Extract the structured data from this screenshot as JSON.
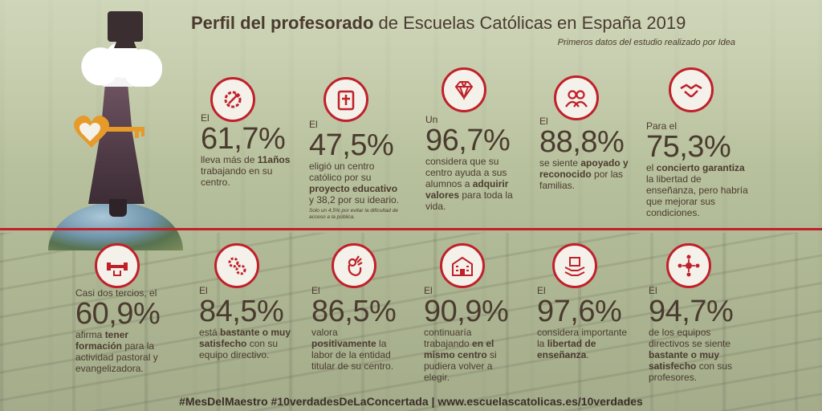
{
  "header": {
    "title_bold": "Perfil del profesorado",
    "title_rest": " de Escuelas Católicas en España 2019",
    "subtitle": "Primeros datos del estudio realizado por Idea"
  },
  "colors": {
    "accent": "#c0202a",
    "text": "#4a3b2e",
    "icon_bg": "#f4f1ea"
  },
  "stats_top": [
    {
      "icon": "gears-wrench-icon",
      "intro": "El",
      "value": "61,7%",
      "d1": "lleva más de ",
      "d1b": "11",
      "d2": "",
      "d2b": "años",
      "d3": " trabajando en su centro.",
      "note": ""
    },
    {
      "icon": "cross-book-icon",
      "intro": "El",
      "value": "47,5%",
      "d1": "eligió un centro católico por su ",
      "d1b": "proyecto educativo",
      "d2": " y 38,2 por su ideario.",
      "d2b": "",
      "d3": "",
      "note": "Solo un 4,5% por evitar la dificultad de acceso a la pública."
    },
    {
      "icon": "diamond-icon",
      "intro": "Un",
      "value": "96,7%",
      "d1": "considera que su centro ayuda a sus alumnos a ",
      "d1b": "adquirir valores",
      "d2": " para toda la vida.",
      "d2b": "",
      "d3": "",
      "note": ""
    },
    {
      "icon": "people-icon",
      "intro": "El",
      "value": "88,8%",
      "d1": "se siente ",
      "d1b": "apoyado y reconocido",
      "d2": " por las familias.",
      "d2b": "",
      "d3": "",
      "note": ""
    },
    {
      "icon": "handshake-icon",
      "intro": "Para el",
      "value": "75,3%",
      "d1": "el ",
      "d1b": "concierto garantiza",
      "d2": " la libertad de enseñanza, pero habría que mejorar sus condiciones.",
      "d2b": "",
      "d3": "",
      "note": ""
    }
  ],
  "stats_bottom": [
    {
      "icon": "dumbbell-icon",
      "intro": "Casi dos tercios, el",
      "value": "60,9%",
      "d1": "afirma ",
      "d1b": "tener formación",
      "d2": " para la actividad pastoral y evangelizadora.",
      "d2b": "",
      "d3": "",
      "note": ""
    },
    {
      "icon": "gears-icon",
      "intro": "El",
      "value": "84,5%",
      "d1": "está ",
      "d1b": "bastante o muy satisfecho",
      "d2": " con su equipo directivo.",
      "d2b": "",
      "d3": "",
      "note": ""
    },
    {
      "icon": "ok-hand-icon",
      "intro": "El",
      "value": "86,5%",
      "d1": "valora ",
      "d1b": "positivamente",
      "d2": " la labor de la entidad titular de su centro.",
      "d2b": "",
      "d3": "",
      "note": ""
    },
    {
      "icon": "school-building-icon",
      "intro": "El",
      "value": "90,9%",
      "d1": "continuaría trabajando ",
      "d1b": "en el mismo centro",
      "d2": " si pudiera volver a elegir.",
      "d2b": "",
      "d3": "",
      "note": ""
    },
    {
      "icon": "hands-box-icon",
      "intro": "El",
      "value": "97,6%",
      "d1": "considera importante la ",
      "d1b": "libertad de enseñanza",
      "d2": ".",
      "d2b": "",
      "d3": "",
      "note": ""
    },
    {
      "icon": "network-people-icon",
      "intro": "El",
      "value": "94,7%",
      "d1": "de los equipos directivos se siente ",
      "d1b": "bastante o muy satisfecho",
      "d2": " con sus profesores.",
      "d2b": "",
      "d3": "",
      "note": ""
    }
  ],
  "footer": {
    "text": "#MesDelMaestro #10verdadesDeLaConcertada | www.escuelascatolicas.es/10verdades"
  }
}
